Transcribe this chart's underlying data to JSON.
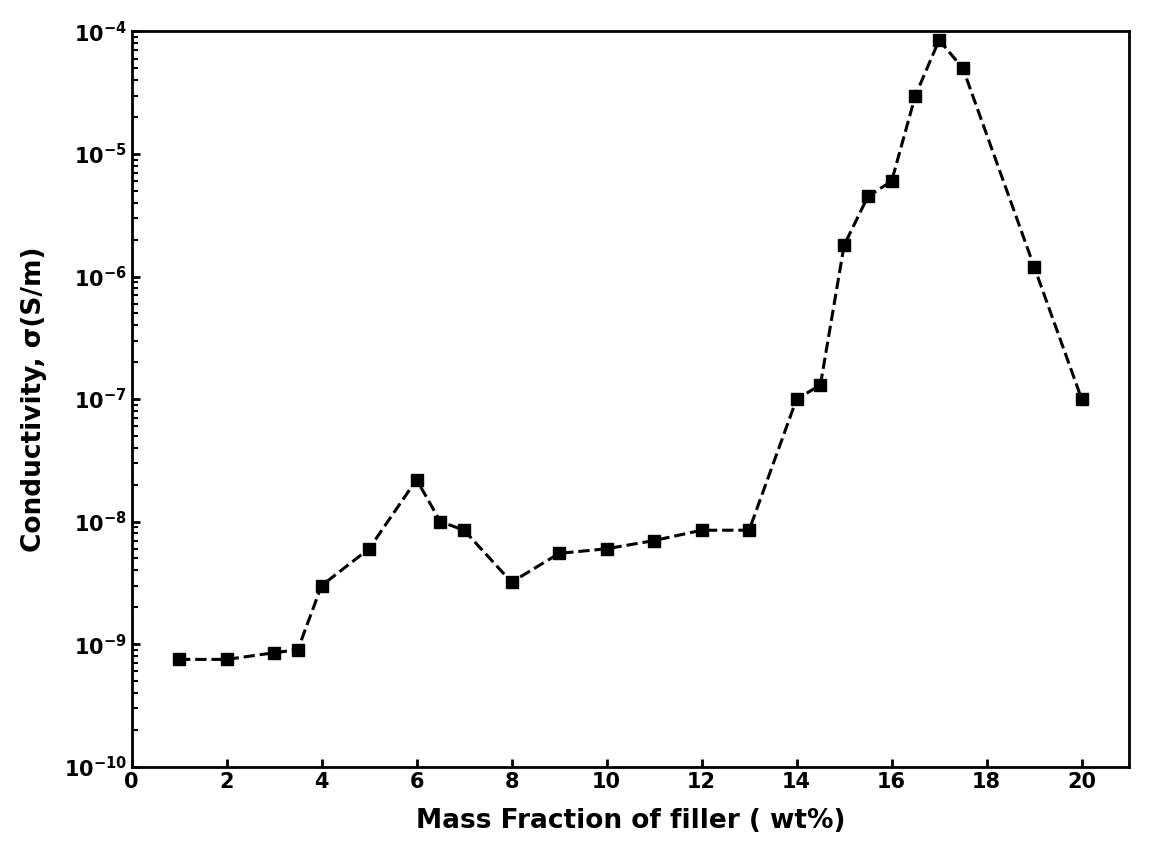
{
  "x": [
    1,
    2,
    3,
    3.5,
    4,
    5,
    6,
    6.5,
    7,
    8,
    9,
    10,
    11,
    12,
    13,
    14,
    14.5,
    15,
    15.5,
    16,
    16.5,
    17,
    17.5,
    19,
    20
  ],
  "y": [
    7.5e-10,
    7.5e-10,
    8.5e-10,
    9e-10,
    3e-09,
    6e-09,
    2.2e-08,
    1e-08,
    8.5e-09,
    3.2e-09,
    5.5e-09,
    6e-09,
    7e-09,
    8.5e-09,
    8.5e-09,
    1e-07,
    1.3e-07,
    1.8e-06,
    4.5e-06,
    6e-06,
    3e-05,
    8.5e-05,
    5e-05,
    1.2e-06,
    1e-07
  ],
  "xlabel": "Mass Fraction of filler ( wt%)",
  "ylabel": "Conductivity, σ(S/m)",
  "xlim": [
    0,
    21
  ],
  "ylim": [
    1e-10,
    0.0001
  ],
  "xticks": [
    0,
    2,
    4,
    6,
    8,
    10,
    12,
    14,
    16,
    18,
    20
  ],
  "line_color": "black",
  "marker": "s",
  "markersize": 9,
  "linestyle": "--",
  "linewidth": 2.2,
  "xlabel_fontsize": 19,
  "ylabel_fontsize": 19,
  "tick_fontsize": 15,
  "background_color": "white"
}
